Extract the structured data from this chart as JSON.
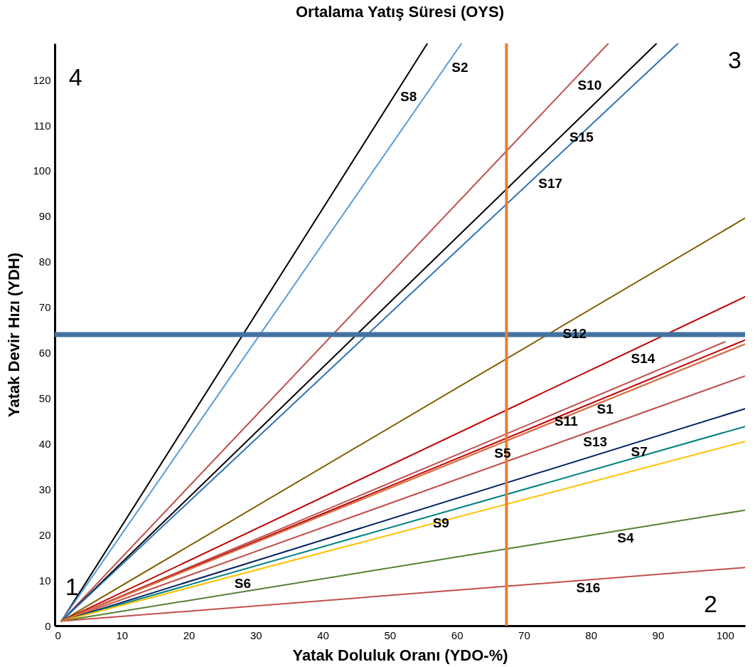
{
  "chart_data": {
    "type": "line",
    "title": "Ortalama Yatış Süresi (OYS)",
    "xlabel": "Yatak Doluluk Oranı (YDO-%)",
    "ylabel": "Yatak Devir Hızı (YDH)",
    "xlim": [
      0,
      103
    ],
    "ylim": [
      0,
      128
    ],
    "xticks": [
      0,
      10,
      20,
      30,
      40,
      50,
      60,
      70,
      80,
      90,
      100
    ],
    "yticks": [
      0,
      10,
      20,
      30,
      40,
      50,
      60,
      70,
      80,
      90,
      100,
      110,
      120
    ],
    "grid": false,
    "legend": false,
    "series": [
      {
        "name": "S8",
        "color": "#000000",
        "x": [
          1,
          55.6
        ],
        "values": [
          1,
          128
        ]
      },
      {
        "name": "S2",
        "color": "#5b9bd5",
        "x": [
          1,
          60.7
        ],
        "values": [
          1,
          128
        ]
      },
      {
        "name": "S10",
        "color": "#c0504d",
        "x": [
          1,
          82.6
        ],
        "values": [
          1,
          128
        ]
      },
      {
        "name": "S15",
        "color": "#000000",
        "x": [
          1,
          89.8
        ],
        "values": [
          1,
          128
        ]
      },
      {
        "name": "S17",
        "color": "#2e75b6",
        "x": [
          1,
          93.0
        ],
        "values": [
          1,
          128
        ]
      },
      {
        "name": "S12",
        "color": "#7f6000",
        "x": [
          1,
          103
        ],
        "values": [
          1,
          89.6
        ]
      },
      {
        "name": "S14",
        "color": "#c00000",
        "x": [
          1,
          103
        ],
        "values": [
          1,
          72.3
        ]
      },
      {
        "name": "S11",
        "color": "#c0504d",
        "x": [
          1,
          100
        ],
        "values": [
          1,
          62.4
        ]
      },
      {
        "name": "S1",
        "color": "#c00000",
        "x": [
          1,
          103
        ],
        "values": [
          1,
          62.8
        ]
      },
      {
        "name": "S5",
        "color": "#7030a0",
        "x": [
          1,
          103
        ],
        "values": [
          1,
          61.9
        ]
      },
      {
        "color": "#ed7d31",
        "x": [
          1,
          103
        ],
        "values": [
          1,
          61.9
        ],
        "line_style": "dashed"
      },
      {
        "name": "S13",
        "color": "#c0504d",
        "x": [
          1,
          103
        ],
        "values": [
          1,
          54.9
        ]
      },
      {
        "name": "S7",
        "color": "#002060",
        "x": [
          1,
          103
        ],
        "values": [
          1,
          47.7
        ]
      },
      {
        "name": "S9",
        "color": "#008080",
        "x": [
          1,
          103
        ],
        "values": [
          1,
          43.8
        ]
      },
      {
        "name": "S6",
        "color": "#ffc000",
        "x": [
          1,
          103
        ],
        "values": [
          1,
          40.5
        ]
      },
      {
        "name": "S4",
        "color": "#548235",
        "x": [
          1,
          103
        ],
        "values": [
          1,
          25.4
        ]
      },
      {
        "name": "S16",
        "color": "#c0504d",
        "x": [
          1,
          103
        ],
        "values": [
          1,
          12.8
        ]
      }
    ],
    "ref_lines": [
      {
        "axis": "y",
        "value": 64,
        "color": "#44729e"
      },
      {
        "axis": "x",
        "value": 67.4,
        "color": "#ed7d31"
      }
    ],
    "annotations": [
      "1",
      "2",
      "3",
      "4"
    ]
  }
}
